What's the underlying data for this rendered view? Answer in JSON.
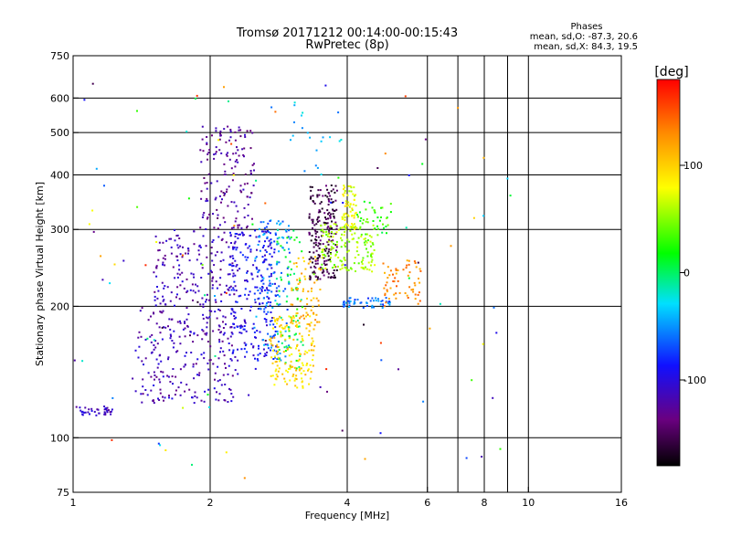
{
  "chart_data": {
    "type": "scatter",
    "title": "Tromsø 20171212 00:14:00-00:15:43",
    "subtitle": "RwPretec (8p)",
    "xlabel": "Frequency [MHz]",
    "ylabel": "Stationary phase Virtual Height [km]",
    "x_scale": "log",
    "y_scale": "log",
    "xlim": [
      1,
      16
    ],
    "ylim": [
      75,
      750
    ],
    "x_ticks": [
      1,
      2,
      4,
      6,
      8,
      10,
      16
    ],
    "x_tick_labels": [
      "1",
      "2",
      "4",
      "6",
      "8",
      "10",
      "16"
    ],
    "x_gridlines": [
      2,
      4,
      6,
      7,
      8,
      9,
      10
    ],
    "y_ticks": [
      75,
      100,
      200,
      300,
      400,
      500,
      600,
      750
    ],
    "y_tick_labels": [
      "75",
      "100",
      "200",
      "300",
      "400",
      "500",
      "600",
      "750"
    ],
    "y_gridlines": [
      100,
      200,
      300,
      400,
      500,
      600
    ],
    "grid": true,
    "stats": {
      "heading": "Phases",
      "o_line": "mean, sd,O: -87.3, 20.6",
      "x_line": "mean, sd,X:  84.3, 19.5"
    },
    "colorbar": {
      "label": "[deg]",
      "range": [
        -180,
        180
      ],
      "ticks": [
        100,
        0,
        -100
      ],
      "tick_labels": [
        "100",
        "0",
        "-100"
      ],
      "colormap": "rainbow (black-purple-blue-cyan-green-yellow-orange-red)"
    },
    "point_groups": [
      {
        "name": "low-layer-trace",
        "x": [
          1.0,
          1.22
        ],
        "y": [
          112,
          118
        ],
        "phase": -110,
        "count": 40
      },
      {
        "name": "e-region-spread",
        "x": [
          1.35,
          1.55
        ],
        "y": [
          120,
          200
        ],
        "phase": -120,
        "count": 40
      },
      {
        "name": "o-mode-main-lower",
        "x": [
          1.5,
          2.3
        ],
        "y": [
          120,
          300
        ],
        "phase": -115,
        "count": 380
      },
      {
        "name": "o-mode-main-upper",
        "x": [
          1.9,
          2.5
        ],
        "y": [
          300,
          520
        ],
        "phase": -125,
        "count": 150
      },
      {
        "name": "o-mode-main-right",
        "x": [
          2.2,
          2.8
        ],
        "y": [
          150,
          300
        ],
        "phase": -95,
        "count": 230
      },
      {
        "name": "mid-cyan-band",
        "x": [
          2.5,
          3.0
        ],
        "y": [
          150,
          320
        ],
        "phase": -55,
        "count": 120
      },
      {
        "name": "mid-green-band",
        "x": [
          2.8,
          3.2
        ],
        "y": [
          140,
          300
        ],
        "phase": 10,
        "count": 70
      },
      {
        "name": "x-mode-low",
        "x": [
          2.7,
          3.4
        ],
        "y": [
          130,
          190
        ],
        "phase": 95,
        "count": 150
      },
      {
        "name": "x-mode-mid",
        "x": [
          3.0,
          3.5
        ],
        "y": [
          180,
          260
        ],
        "phase": 110,
        "count": 70
      },
      {
        "name": "f-trace-dark",
        "x": [
          3.3,
          3.8
        ],
        "y": [
          230,
          380
        ],
        "phase": -155,
        "count": 200
      },
      {
        "name": "f-trace-green",
        "x": [
          3.5,
          4.6
        ],
        "y": [
          240,
          310
        ],
        "phase": 55,
        "count": 150
      },
      {
        "name": "f-trace-green-upper",
        "x": [
          3.9,
          4.2
        ],
        "y": [
          300,
          380
        ],
        "phase": 75,
        "count": 60
      },
      {
        "name": "f-trace-tail",
        "x": [
          4.2,
          5.0
        ],
        "y": [
          290,
          350
        ],
        "phase": 30,
        "count": 40
      },
      {
        "name": "f-trace-cyan-low",
        "x": [
          3.9,
          5.0
        ],
        "y": [
          198,
          210
        ],
        "phase": -60,
        "count": 50
      },
      {
        "name": "high-orange",
        "x": [
          4.8,
          5.8
        ],
        "y": [
          200,
          255
        ],
        "phase": 130,
        "count": 60
      },
      {
        "name": "upper-sparse",
        "x": [
          3.0,
          3.9
        ],
        "y": [
          400,
          600
        ],
        "phase": -40,
        "count": 20
      },
      {
        "name": "scattered-noise",
        "x": [
          1.0,
          9.5
        ],
        "y": [
          78,
          650
        ],
        "phase": 0,
        "count": 110
      }
    ]
  }
}
